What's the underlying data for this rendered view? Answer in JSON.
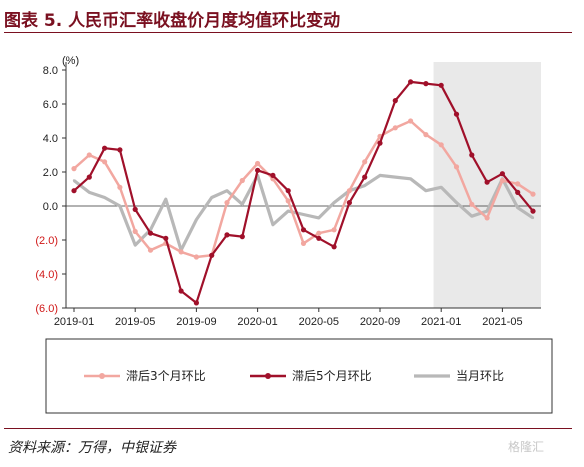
{
  "title": "图表 5. 人民币汇率收盘价月度均值环比变动",
  "source": "资料来源：万得，中银证券",
  "watermark": "格隆汇",
  "chart_data": {
    "type": "line",
    "unit_label": "(%)",
    "ylim": [
      -6.0,
      8.0
    ],
    "y_ticks": [
      "8.0",
      "6.0",
      "4.0",
      "2.0",
      "0.0",
      "(2.0)",
      "(4.0)",
      "(6.0)"
    ],
    "y_tick_values": [
      8,
      6,
      4,
      2,
      0,
      -2,
      -4,
      -6
    ],
    "x_tick_labels": [
      "2019-01",
      "2019-05",
      "2019-09",
      "2020-01",
      "2020-05",
      "2020-09",
      "2021-01",
      "2021-05"
    ],
    "x_tick_index": [
      0,
      4,
      8,
      12,
      16,
      20,
      24,
      28
    ],
    "x": [
      "2019-01",
      "2019-02",
      "2019-03",
      "2019-04",
      "2019-05",
      "2019-06",
      "2019-07",
      "2019-08",
      "2019-09",
      "2019-10",
      "2019-11",
      "2019-12",
      "2020-01",
      "2020-02",
      "2020-03",
      "2020-04",
      "2020-05",
      "2020-06",
      "2020-07",
      "2020-08",
      "2020-09",
      "2020-10",
      "2020-11",
      "2020-12",
      "2021-01",
      "2021-02",
      "2021-03",
      "2021-04",
      "2021-05",
      "2021-06",
      "2021-07"
    ],
    "shade_from": "2021-01",
    "grid": false,
    "legend_position": "bottom",
    "series": [
      {
        "name": "滞后3个月环比",
        "color": "#f2a7a0",
        "values": [
          2.2,
          3.0,
          2.6,
          1.1,
          -1.5,
          -2.6,
          -2.2,
          -2.7,
          -3.0,
          -2.9,
          0.2,
          1.5,
          2.5,
          1.6,
          0.3,
          -2.2,
          -1.6,
          -1.4,
          0.9,
          2.6,
          4.1,
          4.6,
          5.0,
          4.2,
          3.6,
          2.3,
          0.1,
          -0.7,
          1.5,
          1.3,
          0.7
        ]
      },
      {
        "name": "滞后5个月环比",
        "color": "#a0102a",
        "values": [
          0.9,
          1.7,
          3.4,
          3.3,
          -0.2,
          -1.6,
          -1.9,
          -5.0,
          -5.7,
          -2.9,
          -1.7,
          -1.8,
          2.1,
          1.8,
          0.9,
          -1.4,
          -1.9,
          -2.4,
          0.2,
          1.7,
          3.7,
          6.2,
          7.3,
          7.2,
          7.1,
          5.4,
          3.0,
          1.4,
          1.9,
          0.8,
          -0.3
        ]
      },
      {
        "name": "当月环比",
        "color": "#b8b8b8",
        "values": [
          1.5,
          0.8,
          0.5,
          0.0,
          -2.3,
          -1.4,
          0.4,
          -2.6,
          -0.8,
          0.5,
          0.9,
          0.1,
          1.8,
          -1.1,
          -0.3,
          -0.5,
          -0.7,
          0.2,
          0.9,
          1.2,
          1.8,
          1.7,
          1.6,
          0.9,
          1.1,
          0.2,
          -0.6,
          -0.3,
          1.6,
          -0.1,
          -0.7
        ]
      }
    ]
  }
}
